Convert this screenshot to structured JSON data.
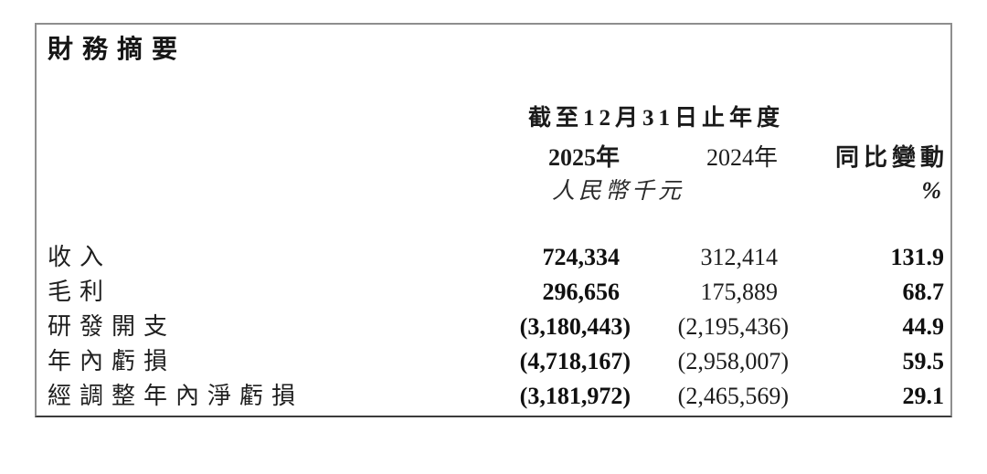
{
  "panel": {
    "title": "財務摘要",
    "header": {
      "period": "截至12月31日止年度",
      "col_2025": "2025年",
      "col_2024": "2024年",
      "col_change": "同比變動",
      "unit": "人民幣千元",
      "unit_change": "%"
    },
    "rows": [
      {
        "label": "收入",
        "v2025": "724,334",
        "v2024": "312,414",
        "change": "131.9"
      },
      {
        "label": "毛利",
        "v2025": "296,656",
        "v2024": "175,889",
        "change": "68.7"
      },
      {
        "label": "研發開支",
        "v2025": "(3,180,443)",
        "v2024": "(2,195,436)",
        "change": "44.9"
      },
      {
        "label": "年內虧損",
        "v2025": "(4,718,167)",
        "v2024": "(2,958,007)",
        "change": "59.5"
      },
      {
        "label": "經調整年內淨虧損",
        "v2025": "(3,181,972)",
        "v2024": "(2,465,569)",
        "change": "29.1"
      }
    ]
  }
}
